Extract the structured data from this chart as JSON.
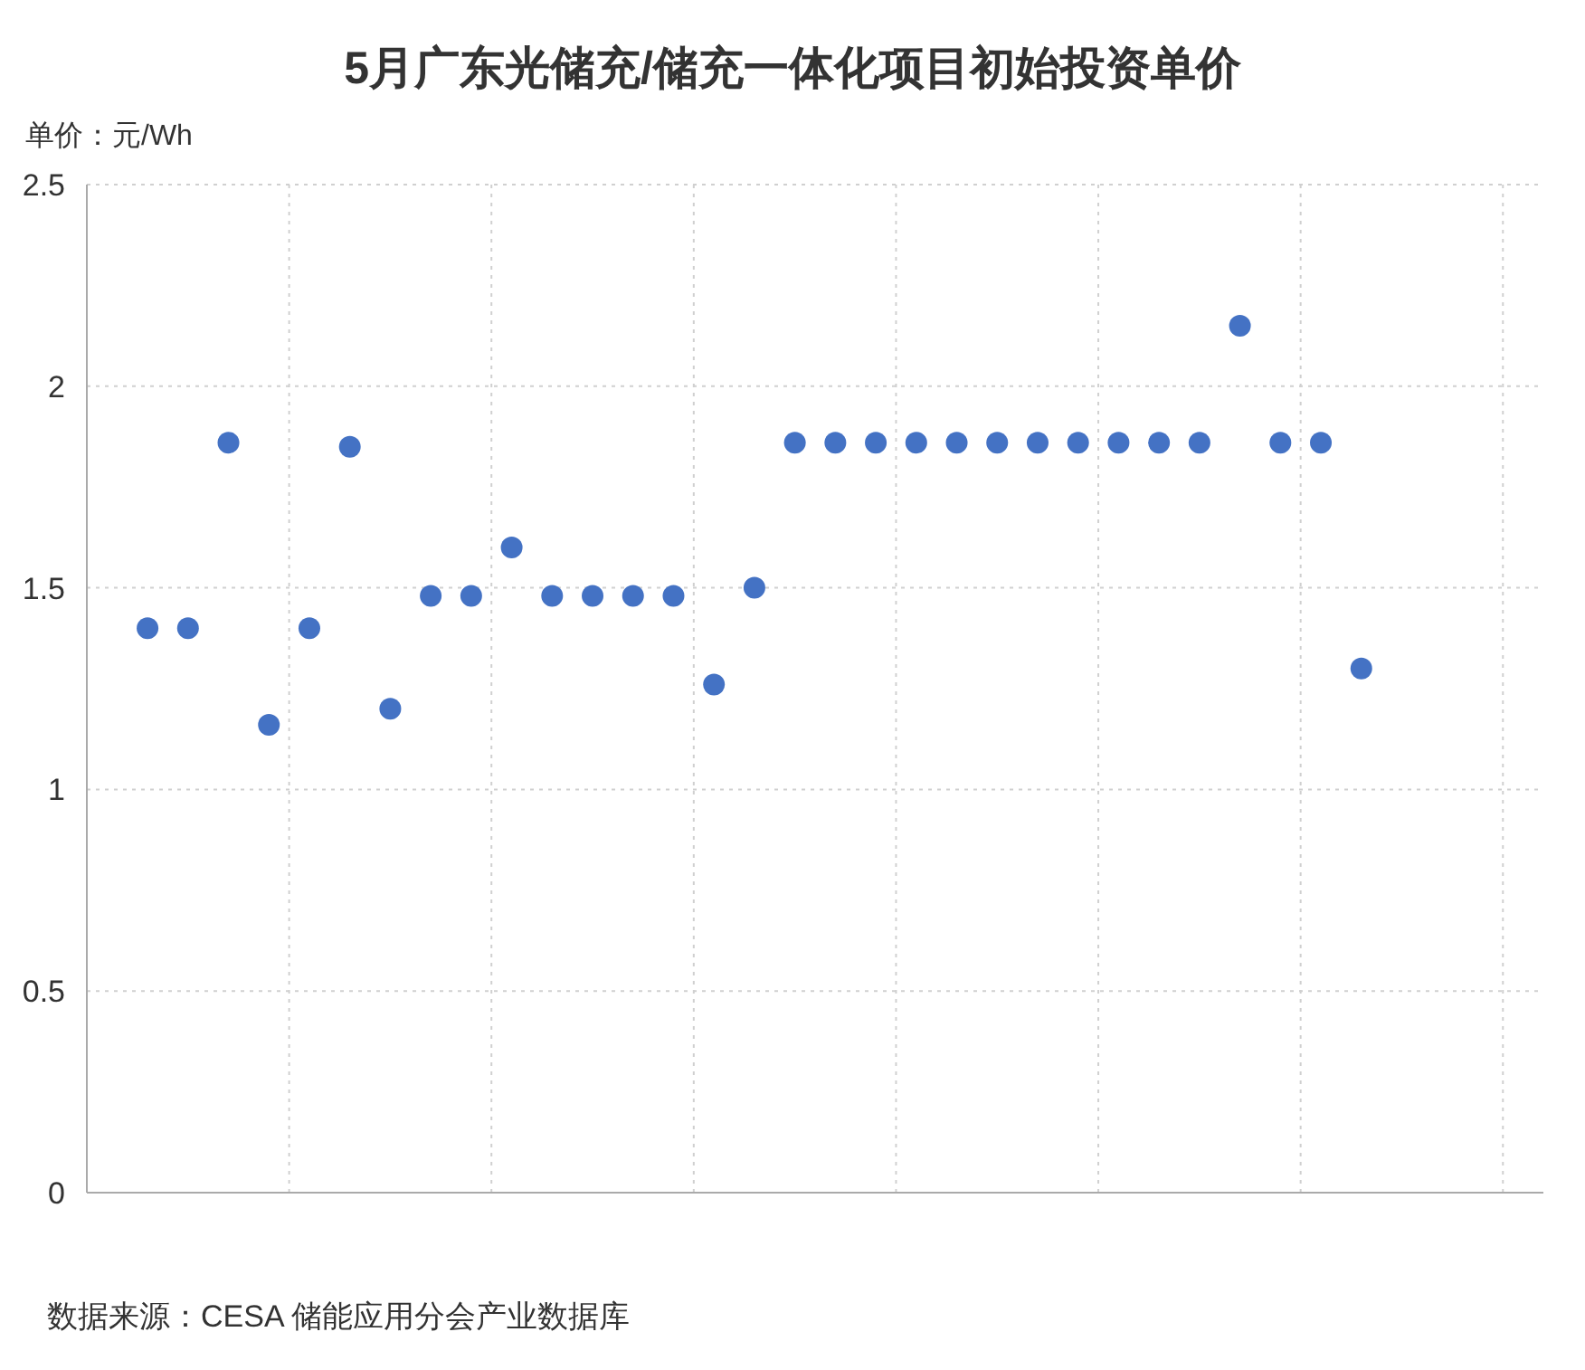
{
  "chart_data": {
    "type": "scatter",
    "title": "5月广东光储充/储充一体化项目初始投资单价",
    "ylabel": "单价：元/Wh",
    "annotations": [
      "数据来源：CESA 储能应用分会产业数据库"
    ],
    "categories": [
      null,
      null,
      null,
      null,
      null,
      null,
      null,
      null,
      null,
      null,
      null,
      null,
      null,
      null,
      null,
      null,
      null,
      null,
      null,
      null,
      null,
      null,
      null,
      null,
      null,
      null,
      null,
      null,
      null,
      null,
      null,
      null,
      null,
      null,
      null,
      null
    ],
    "series": [
      {
        "color": "#4472c4",
        "values": [
          null,
          1.4,
          1.4,
          1.86,
          1.16,
          1.4,
          1.85,
          1.2,
          1.48,
          1.48,
          1.6,
          1.48,
          1.48,
          1.48,
          1.48,
          1.26,
          1.5,
          1.86,
          1.86,
          1.86,
          1.86,
          1.86,
          1.86,
          1.86,
          1.86,
          1.86,
          1.86,
          1.86,
          2.15,
          1.86,
          1.86,
          1.3,
          null,
          null,
          null,
          null
        ]
      }
    ],
    "ylim": [
      0,
      2.5
    ],
    "yticks": [
      0,
      0.5,
      1,
      1.5,
      2,
      2.5
    ],
    "grid": true,
    "marker": "circle"
  }
}
